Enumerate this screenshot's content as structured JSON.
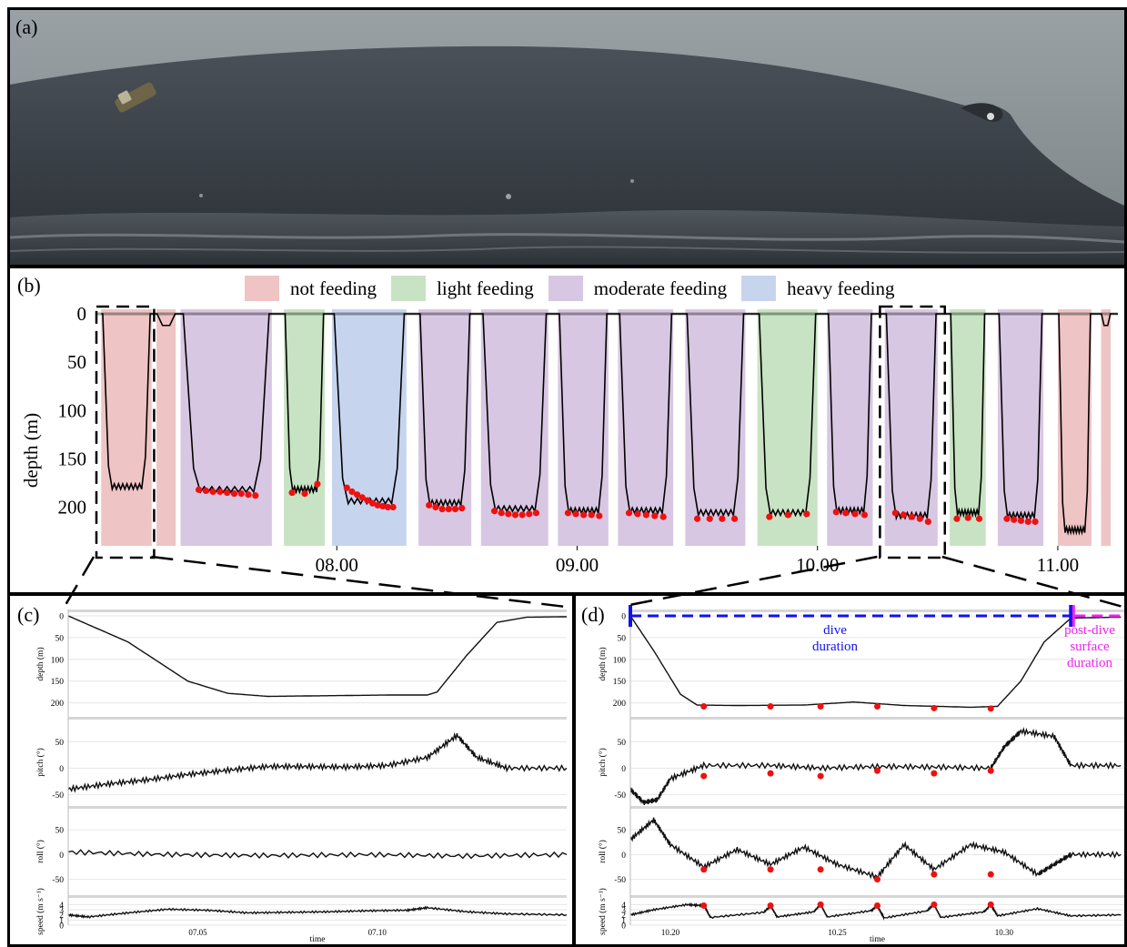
{
  "colors": {
    "not_feeding": "#efc4c4",
    "light_feeding": "#c8e3c3",
    "moderate_feeding": "#d8c7e2",
    "heavy_feeding": "#c7d4ee",
    "feeding_dot": "#ee1111",
    "dive_duration": "#1111ee",
    "post_dive": "#ee22ee"
  },
  "panels": {
    "a": {
      "label": "(a)"
    },
    "b": {
      "label": "(b)"
    },
    "c": {
      "label": "(c)"
    },
    "d": {
      "label": "(d)"
    }
  },
  "chart_data": [
    {
      "id": "b",
      "type": "area",
      "ylabel": "depth (m)",
      "ylim": [
        0,
        240
      ],
      "yticks": [
        0,
        50,
        100,
        150,
        200
      ],
      "xticks": [
        "08.00",
        "09.00",
        "10.00",
        "11.00"
      ],
      "xtick_hours": [
        8.0,
        9.0,
        10.0,
        11.0
      ],
      "xlim_hours": [
        7.0,
        11.25
      ],
      "legend": [
        {
          "key": "not_feeding",
          "label": "not feeding"
        },
        {
          "key": "light_feeding",
          "label": "light feeding"
        },
        {
          "key": "moderate_feeding",
          "label": "moderate feeding"
        },
        {
          "key": "heavy_feeding",
          "label": "heavy feeding"
        }
      ],
      "dives": [
        {
          "start": 7.02,
          "end": 7.23,
          "max_depth": 185,
          "class": "not_feeding",
          "lunges": []
        },
        {
          "start": 7.25,
          "end": 7.33,
          "max_depth": 12,
          "class": "not_feeding",
          "lunges": []
        },
        {
          "start": 7.35,
          "end": 7.73,
          "max_depth": 188,
          "class": "moderate_feeding",
          "lunges": [
            182,
            183,
            184,
            184,
            185,
            186,
            186,
            187,
            188
          ]
        },
        {
          "start": 7.78,
          "end": 7.95,
          "max_depth": 188,
          "class": "light_feeding",
          "lunges": [
            185,
            186,
            176
          ]
        },
        {
          "start": 7.98,
          "end": 8.29,
          "max_depth": 200,
          "class": "heavy_feeding",
          "lunges": [
            180,
            184,
            187,
            190,
            193,
            196,
            198,
            199,
            200,
            200
          ]
        },
        {
          "start": 8.34,
          "end": 8.56,
          "max_depth": 202,
          "class": "moderate_feeding",
          "lunges": [
            198,
            200,
            202,
            202,
            202,
            201
          ]
        },
        {
          "start": 8.6,
          "end": 8.88,
          "max_depth": 208,
          "class": "moderate_feeding",
          "lunges": [
            204,
            206,
            207,
            208,
            208,
            207,
            206
          ]
        },
        {
          "start": 8.92,
          "end": 9.13,
          "max_depth": 210,
          "class": "moderate_feeding",
          "lunges": [
            206,
            207,
            208,
            208,
            209
          ]
        },
        {
          "start": 9.17,
          "end": 9.4,
          "max_depth": 210,
          "class": "moderate_feeding",
          "lunges": [
            206,
            207,
            208,
            209,
            210
          ]
        },
        {
          "start": 9.45,
          "end": 9.7,
          "max_depth": 212,
          "class": "moderate_feeding",
          "lunges": [
            212,
            212,
            212,
            212
          ]
        },
        {
          "start": 9.75,
          "end": 10.0,
          "max_depth": 212,
          "class": "light_feeding",
          "lunges": [
            210,
            208,
            207
          ]
        },
        {
          "start": 10.04,
          "end": 10.23,
          "max_depth": 210,
          "class": "moderate_feeding",
          "lunges": [
            205,
            206,
            207,
            208
          ]
        },
        {
          "start": 10.28,
          "end": 10.5,
          "max_depth": 215,
          "class": "moderate_feeding",
          "lunges": [
            206,
            208,
            210,
            212,
            215
          ]
        },
        {
          "start": 10.55,
          "end": 10.7,
          "max_depth": 212,
          "class": "light_feeding",
          "lunges": [
            212,
            211,
            212
          ]
        },
        {
          "start": 10.75,
          "end": 10.94,
          "max_depth": 215,
          "class": "moderate_feeding",
          "lunges": [
            212,
            213,
            214,
            215,
            215
          ]
        },
        {
          "start": 11.0,
          "end": 11.14,
          "max_depth": 230,
          "class": "not_feeding",
          "lunges": []
        },
        {
          "start": 11.18,
          "end": 11.22,
          "max_depth": 12,
          "class": "not_feeding",
          "lunges": []
        }
      ]
    },
    {
      "id": "c",
      "type": "line",
      "xlabel": "time",
      "xticks": [
        "07.05",
        "07.10"
      ],
      "subplots": [
        {
          "ylabel": "depth (m)",
          "yticks": [
            0,
            50,
            100,
            150,
            200
          ],
          "ylim": [
            0,
            230
          ],
          "invert": true,
          "points": [
            [
              0,
              0
            ],
            [
              3,
              60
            ],
            [
              6,
              150
            ],
            [
              8,
              178
            ],
            [
              10,
              185
            ],
            [
              12,
              184
            ],
            [
              14,
              183
            ],
            [
              16,
              182
            ],
            [
              18,
              182
            ],
            [
              18.5,
              175
            ],
            [
              20,
              90
            ],
            [
              21.5,
              15
            ],
            [
              23,
              3
            ],
            [
              25,
              2
            ]
          ]
        },
        {
          "ylabel": "pitch (°)",
          "yticks": [
            -50,
            0,
            50
          ],
          "ylim": [
            -70,
            85
          ],
          "points": [
            [
              0,
              -40
            ],
            [
              2,
              -30
            ],
            [
              4,
              -22
            ],
            [
              6,
              -12
            ],
            [
              8,
              -4
            ],
            [
              10,
              3
            ],
            [
              12,
              3
            ],
            [
              14,
              2
            ],
            [
              16,
              5
            ],
            [
              18,
              20
            ],
            [
              19.5,
              62
            ],
            [
              20.5,
              20
            ],
            [
              22,
              0
            ],
            [
              25,
              0
            ]
          ]
        },
        {
          "ylabel": "roll (°)",
          "yticks": [
            -50,
            0,
            50
          ],
          "ylim": [
            -80,
            85
          ],
          "points": [
            [
              0,
              5
            ],
            [
              5,
              0
            ],
            [
              10,
              -2
            ],
            [
              15,
              0
            ],
            [
              20,
              -3
            ],
            [
              25,
              0
            ]
          ]
        },
        {
          "ylabel": "speed (m s⁻¹)",
          "yticks": [
            0,
            1,
            2,
            3,
            4
          ],
          "ylim": [
            0,
            4.6
          ],
          "points": [
            [
              0,
              2.0
            ],
            [
              1,
              1.6
            ],
            [
              3,
              2.4
            ],
            [
              5,
              3.1
            ],
            [
              7,
              2.9
            ],
            [
              9,
              2.4
            ],
            [
              11,
              2.5
            ],
            [
              13,
              2.6
            ],
            [
              15,
              2.8
            ],
            [
              17,
              2.9
            ],
            [
              18,
              3.4
            ],
            [
              20,
              2.6
            ],
            [
              22,
              2.2
            ],
            [
              25,
              2.0
            ]
          ]
        }
      ]
    },
    {
      "id": "d",
      "type": "line",
      "xlabel": "time",
      "xticks": [
        "10.20",
        "10.25",
        "10.30"
      ],
      "annotations": [
        "dive duration",
        "post-dive surface duration"
      ],
      "lunge_times": [
        10.21,
        10.23,
        10.245,
        10.262,
        10.279,
        10.296
      ],
      "subplots": [
        {
          "ylabel": "depth (m)",
          "yticks": [
            0,
            50,
            100,
            150,
            200
          ],
          "ylim": [
            0,
            230
          ],
          "invert": true,
          "lunge_values": [
            208,
            208,
            208,
            208,
            212,
            213
          ],
          "points": [
            [
              10.188,
              0
            ],
            [
              10.195,
              80
            ],
            [
              10.203,
              180
            ],
            [
              10.208,
              205
            ],
            [
              10.22,
              206
            ],
            [
              10.24,
              205
            ],
            [
              10.255,
              198
            ],
            [
              10.27,
              206
            ],
            [
              10.29,
              210
            ],
            [
              10.298,
              208
            ],
            [
              10.305,
              150
            ],
            [
              10.312,
              60
            ],
            [
              10.32,
              5
            ],
            [
              10.335,
              3
            ]
          ]
        },
        {
          "ylabel": "pitch (°)",
          "yticks": [
            -50,
            0,
            50
          ],
          "ylim": [
            -70,
            85
          ],
          "lunge_values": [
            -15,
            -10,
            -15,
            -5,
            -10,
            -5
          ],
          "points": [
            [
              10.188,
              -40
            ],
            [
              10.192,
              -65
            ],
            [
              10.196,
              -60
            ],
            [
              10.2,
              -20
            ],
            [
              10.21,
              5
            ],
            [
              10.23,
              5
            ],
            [
              10.245,
              0
            ],
            [
              10.262,
              3
            ],
            [
              10.279,
              2
            ],
            [
              10.296,
              0
            ],
            [
              10.3,
              40
            ],
            [
              10.305,
              70
            ],
            [
              10.315,
              60
            ],
            [
              10.32,
              5
            ],
            [
              10.335,
              5
            ]
          ]
        },
        {
          "ylabel": "roll (°)",
          "yticks": [
            -50,
            0,
            50
          ],
          "ylim": [
            -80,
            85
          ],
          "lunge_values": [
            -30,
            -30,
            -30,
            -50,
            -40,
            -40
          ],
          "points": [
            [
              10.188,
              30
            ],
            [
              10.195,
              70
            ],
            [
              10.2,
              20
            ],
            [
              10.21,
              -25
            ],
            [
              10.22,
              10
            ],
            [
              10.23,
              -20
            ],
            [
              10.24,
              15
            ],
            [
              10.25,
              -20
            ],
            [
              10.262,
              -45
            ],
            [
              10.27,
              20
            ],
            [
              10.279,
              -30
            ],
            [
              10.29,
              20
            ],
            [
              10.3,
              5
            ],
            [
              10.31,
              -40
            ],
            [
              10.315,
              -20
            ],
            [
              10.32,
              0
            ],
            [
              10.335,
              0
            ]
          ]
        },
        {
          "ylabel": "speed (m s⁻¹)",
          "yticks": [
            0,
            1,
            2,
            3,
            4
          ],
          "ylim": [
            0,
            4.6
          ],
          "lunge_values": [
            3.8,
            3.8,
            4.0,
            3.8,
            4.0,
            4.0
          ],
          "points": [
            [
              10.188,
              2.0
            ],
            [
              10.195,
              3.0
            ],
            [
              10.205,
              4.0
            ],
            [
              10.21,
              3.8
            ],
            [
              10.212,
              1.5
            ],
            [
              10.228,
              2.5
            ],
            [
              10.23,
              3.8
            ],
            [
              10.232,
              1.6
            ],
            [
              10.243,
              2.6
            ],
            [
              10.245,
              4.0
            ],
            [
              10.247,
              1.6
            ],
            [
              10.26,
              2.8
            ],
            [
              10.262,
              3.8
            ],
            [
              10.264,
              1.4
            ],
            [
              10.277,
              2.8
            ],
            [
              10.279,
              4.0
            ],
            [
              10.281,
              1.5
            ],
            [
              10.294,
              2.6
            ],
            [
              10.296,
              4.0
            ],
            [
              10.298,
              1.8
            ],
            [
              10.31,
              3.2
            ],
            [
              10.32,
              1.8
            ],
            [
              10.335,
              2.0
            ]
          ]
        }
      ]
    }
  ]
}
